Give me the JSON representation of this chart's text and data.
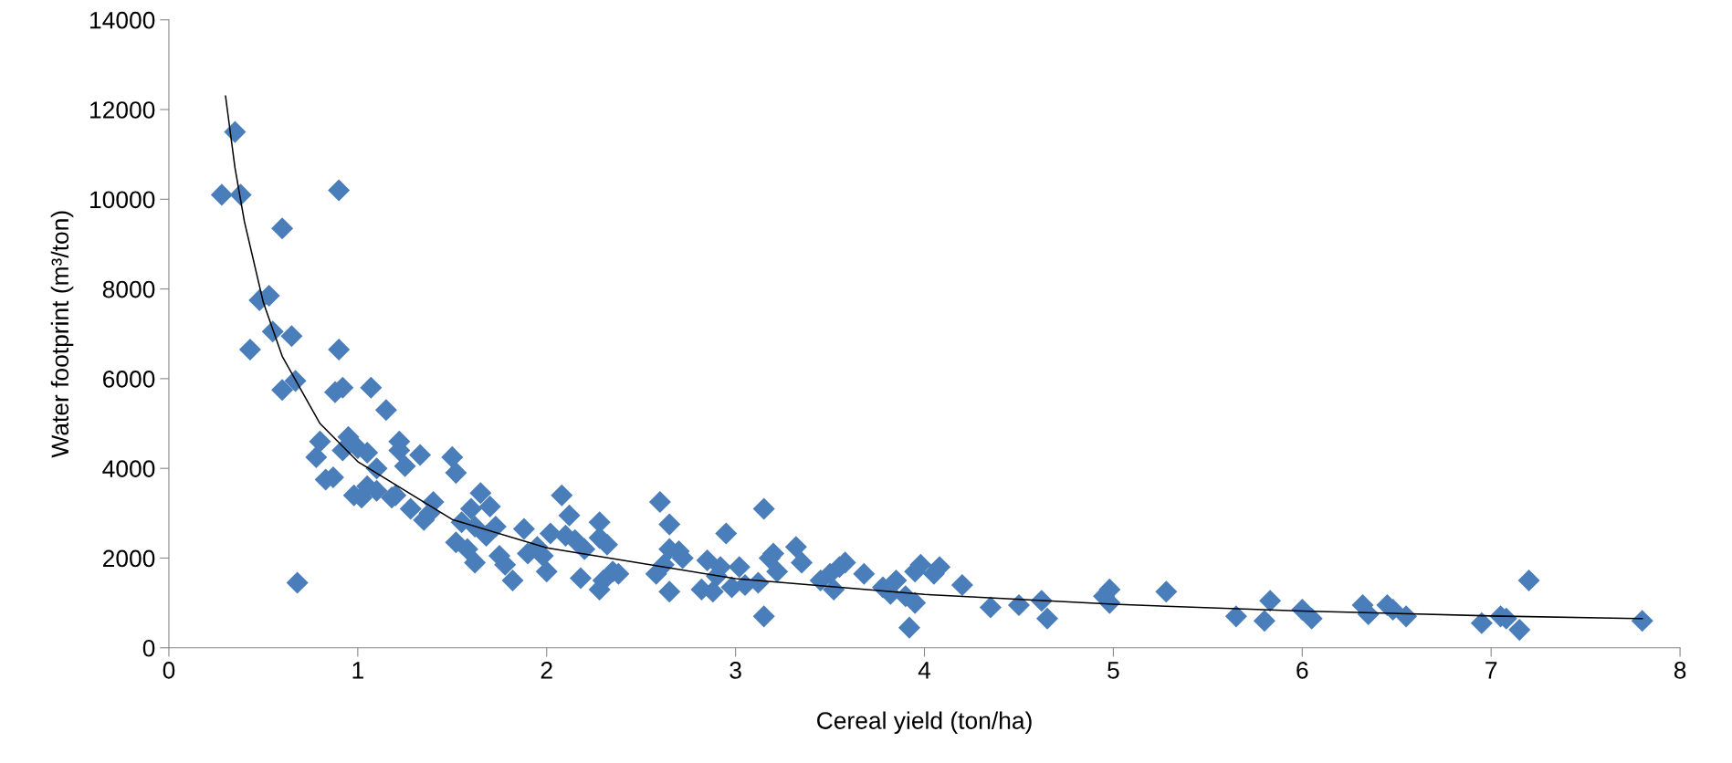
{
  "chart_data": {
    "type": "scatter",
    "xlabel": "Cereal yield (ton/ha)",
    "ylabel": "Water footprint (m³/ton)",
    "xlim": [
      0,
      8
    ],
    "xticks": [
      0,
      1,
      2,
      3,
      4,
      5,
      6,
      7,
      8
    ],
    "ylim": [
      0,
      14000
    ],
    "yticks": [
      0,
      2000,
      4000,
      6000,
      8000,
      10000,
      12000,
      14000
    ],
    "grid": false,
    "legend": false,
    "series": [
      {
        "marker": "diamond",
        "color": "#4a7ebb",
        "x": [
          0.28,
          0.35,
          0.38,
          0.43,
          0.48,
          0.53,
          0.55,
          0.6,
          0.6,
          0.65,
          0.67,
          0.68,
          0.78,
          0.8,
          0.83,
          0.87,
          0.88,
          0.9,
          0.9,
          0.92,
          0.92,
          0.95,
          0.98,
          1.0,
          1.02,
          1.05,
          1.05,
          1.07,
          1.1,
          1.1,
          1.15,
          1.18,
          1.2,
          1.22,
          1.22,
          1.25,
          1.28,
          1.33,
          1.35,
          1.38,
          1.4,
          1.5,
          1.52,
          1.52,
          1.55,
          1.58,
          1.6,
          1.62,
          1.62,
          1.65,
          1.68,
          1.7,
          1.73,
          1.75,
          1.78,
          1.82,
          1.88,
          1.9,
          1.95,
          1.98,
          2.0,
          2.02,
          2.08,
          2.1,
          2.12,
          2.15,
          2.18,
          2.2,
          2.28,
          2.28,
          2.28,
          2.3,
          2.32,
          2.35,
          2.38,
          2.58,
          2.6,
          2.62,
          2.65,
          2.65,
          2.65,
          2.7,
          2.72,
          2.82,
          2.85,
          2.88,
          2.9,
          2.92,
          2.95,
          2.98,
          3.02,
          3.05,
          3.12,
          3.15,
          3.15,
          3.18,
          3.2,
          3.22,
          3.32,
          3.35,
          3.45,
          3.5,
          3.52,
          3.55,
          3.58,
          3.68,
          3.78,
          3.82,
          3.85,
          3.9,
          3.92,
          3.95,
          3.95,
          3.98,
          4.05,
          4.08,
          4.2,
          4.35,
          4.5,
          4.62,
          4.65,
          4.95,
          4.98,
          4.98,
          5.28,
          5.65,
          5.8,
          5.83,
          6.0,
          6.05,
          6.32,
          6.35,
          6.45,
          6.48,
          6.55,
          6.95,
          7.05,
          7.08,
          7.15,
          7.2,
          7.8
        ],
        "values": [
          10100,
          11500,
          10100,
          6650,
          7750,
          7850,
          7050,
          9350,
          5750,
          6950,
          5950,
          1450,
          4250,
          4600,
          3750,
          3800,
          5700,
          6650,
          10200,
          5800,
          4400,
          4700,
          3400,
          4450,
          3350,
          4350,
          3600,
          5800,
          4000,
          3500,
          5300,
          3350,
          3400,
          4600,
          4400,
          4050,
          3100,
          4300,
          2850,
          3000,
          3250,
          4250,
          3900,
          2350,
          2800,
          2200,
          3100,
          2700,
          1900,
          3450,
          2500,
          3150,
          2700,
          2050,
          1850,
          1500,
          2650,
          2100,
          2250,
          2050,
          1700,
          2550,
          3400,
          2500,
          2950,
          2400,
          1550,
          2200,
          2800,
          2450,
          1300,
          1500,
          2300,
          1700,
          1650,
          1650,
          3250,
          1850,
          2750,
          2200,
          1250,
          2150,
          2000,
          1300,
          1950,
          1250,
          1600,
          1800,
          2550,
          1350,
          1800,
          1400,
          1450,
          3100,
          700,
          2000,
          2100,
          1700,
          2250,
          1900,
          1500,
          1650,
          1300,
          1800,
          1900,
          1650,
          1350,
          1200,
          1500,
          1150,
          450,
          1000,
          1700,
          1850,
          1650,
          1800,
          1400,
          900,
          950,
          1050,
          650,
          1150,
          1000,
          1300,
          1250,
          700,
          600,
          1050,
          850,
          650,
          950,
          750,
          950,
          850,
          700,
          550,
          700,
          650,
          400,
          1500,
          600
        ]
      },
      {
        "type": "line",
        "color": "#000000",
        "line_style": "solid",
        "x": [
          0.3,
          0.35,
          0.4,
          0.5,
          0.6,
          0.8,
          1,
          1.5,
          2,
          3,
          4,
          5,
          6,
          7,
          7.8
        ],
        "values": [
          12300,
          10700,
          9500,
          7700,
          6500,
          5000,
          4150,
          2860,
          2230,
          1540,
          1190,
          970,
          820,
          710,
          650
        ]
      }
    ]
  }
}
